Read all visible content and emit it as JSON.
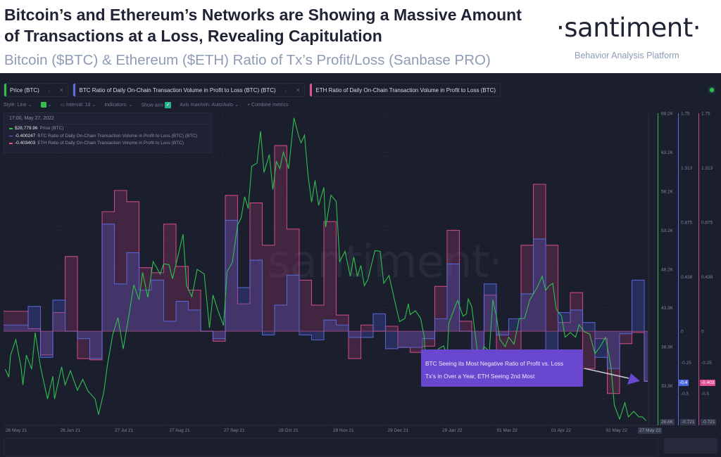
{
  "header": {
    "title": "Bitcoin’s and Ethereum’s Networks are Showing a Massive Amount of Transactions at a Loss, Revealing Capitulation",
    "subtitle": "Bitcoin ($BTC) & Ethereum ($ETH) Ratio of Tx’s Profit/Loss (Sanbase PRO)",
    "logo": "·santiment·",
    "logo_tagline": "Behavior Analysis Platform"
  },
  "tabs": [
    {
      "label": "Price (BTC)",
      "color": "#2fbf4f"
    },
    {
      "label": "BTC Ratio of Daily On-Chain Transaction Volume in Profit to Loss (BTC) (BTC)",
      "color": "#5b6ee1"
    },
    {
      "label": "ETH Ratio of Daily On-Chain Transaction Volume in Profit to Loss (BTC)",
      "color": "#e0508f"
    }
  ],
  "toolbar": {
    "style": "Style: Line",
    "interval": "Interval: 1d",
    "indicators": "Indicators:",
    "show_axis": "Show axis",
    "axis_maxmin": "Axis max/min: Auto/Auto",
    "combine": "+ Combine metrics"
  },
  "legend": {
    "time": "17:00, May 27, 2022",
    "rows": [
      {
        "value": "$28,779.96",
        "label": "Price (BTC)",
        "color": "#2fbf4f"
      },
      {
        "value": "-0.400247",
        "label": "BTC Ratio of Daily On-Chain Transaction Volume in Profit to Loss (BTC) (BTC)",
        "color": "#5b6ee1"
      },
      {
        "value": "-0.403403",
        "label": "ETH Ratio of Daily On-Chain Transaction Volume in Profit to Loss (BTC)",
        "color": "#e0508f"
      }
    ]
  },
  "annotation": {
    "line1": "BTC Seeing its Most Negative Ratio of Profit vs. Loss",
    "line2": "Tx’s in Over a Year, ETH Seeing 2nd Most"
  },
  "watermark": "·santiment·",
  "badges": {
    "btc_current": "-0.4",
    "eth_current": "-0.403",
    "price_min": "28.8K",
    "btc_min": "-0.721",
    "eth_min": "-0.721",
    "date_current": "27 May 22"
  },
  "chart_data": {
    "type": "line",
    "title": "Bitcoin ($BTC) & Ethereum ($ETH) Ratio of Tx’s Profit/Loss",
    "x_start": "2021-05-26",
    "x_days": 366,
    "x_tick_labels": [
      "26 May 21",
      "26 Jun 21",
      "27 Jul 21",
      "27 Aug 21",
      "27 Sep 21",
      "28 Oct 21",
      "28 Nov 21",
      "29 Dec 21",
      "29 Jan 22",
      "01 Mar 22",
      "01 Apr 22",
      "02 May 22"
    ],
    "x_tick_days": [
      0,
      31,
      62,
      93,
      124,
      155,
      186,
      217,
      248,
      279,
      310,
      341
    ],
    "price_axis": {
      "ylim": [
        28.3,
        68.2
      ],
      "ticks": [
        "68.2K",
        "63.2K",
        "58.2K",
        "53.2K",
        "48.2K",
        "43.3K",
        "38.3K",
        "33.3K"
      ],
      "tick_values": [
        68.2,
        63.2,
        58.2,
        53.2,
        48.2,
        43.3,
        38.3,
        33.3
      ]
    },
    "ratio_axis": {
      "ylim": [
        -0.75,
        1.75
      ],
      "ticks": [
        "1.75",
        "1.313",
        "0.875",
        "0.438",
        "0",
        "-0.25",
        "-0.5"
      ],
      "tick_values": [
        1.75,
        1.313,
        0.875,
        0.438,
        0,
        -0.25,
        -0.5
      ]
    },
    "series": [
      {
        "name": "Price (BTC)",
        "unit": "K USD",
        "color": "#2fbf4f",
        "points": [
          [
            1,
            35.4
          ],
          [
            3,
            34.4
          ],
          [
            4,
            37.2
          ],
          [
            7,
            39.2
          ],
          [
            10,
            35.6
          ],
          [
            11,
            33.4
          ],
          [
            13,
            37.2
          ],
          [
            16,
            35.4
          ],
          [
            18,
            40.1
          ],
          [
            21,
            35.7
          ],
          [
            25,
            31.6
          ],
          [
            28,
            34.5
          ],
          [
            29,
            31.6
          ],
          [
            33,
            35.7
          ],
          [
            35,
            33.4
          ],
          [
            38,
            35.2
          ],
          [
            42,
            32.7
          ],
          [
            45,
            34.1
          ],
          [
            48,
            32.6
          ],
          [
            52,
            31.6
          ],
          [
            54,
            29.6
          ],
          [
            57,
            32.5
          ],
          [
            59,
            35.9
          ],
          [
            62,
            39.8
          ],
          [
            65,
            42.0
          ],
          [
            68,
            38.0
          ],
          [
            71,
            42.0
          ],
          [
            74,
            46.2
          ],
          [
            77,
            44.3
          ],
          [
            79,
            47.8
          ],
          [
            82,
            44.6
          ],
          [
            85,
            49.2
          ],
          [
            89,
            47.6
          ],
          [
            91,
            48.9
          ],
          [
            94,
            48.8
          ],
          [
            96,
            47.0
          ],
          [
            99,
            49.8
          ],
          [
            102,
            52.7
          ],
          [
            104,
            46.1
          ],
          [
            107,
            44.7
          ],
          [
            110,
            48.2
          ],
          [
            114,
            47.6
          ],
          [
            117,
            40.7
          ],
          [
            119,
            44.9
          ],
          [
            122,
            42.8
          ],
          [
            125,
            41.0
          ],
          [
            127,
            47.9
          ],
          [
            130,
            49.1
          ],
          [
            133,
            53.9
          ],
          [
            135,
            54.8
          ],
          [
            137,
            57.5
          ],
          [
            139,
            56.0
          ],
          [
            141,
            61.4
          ],
          [
            144,
            61.8
          ],
          [
            146,
            65.9
          ],
          [
            148,
            60.6
          ],
          [
            151,
            62.9
          ],
          [
            153,
            58.4
          ],
          [
            155,
            62.0
          ],
          [
            157,
            61.1
          ],
          [
            159,
            63.2
          ],
          [
            162,
            61.1
          ],
          [
            165,
            67.6
          ],
          [
            168,
            65.0
          ],
          [
            169,
            64.4
          ],
          [
            171,
            65.4
          ],
          [
            173,
            60.2
          ],
          [
            175,
            56.8
          ],
          [
            177,
            59.6
          ],
          [
            179,
            56.4
          ],
          [
            182,
            58.7
          ],
          [
            183,
            53.6
          ],
          [
            186,
            57.7
          ],
          [
            189,
            56.9
          ],
          [
            191,
            49.2
          ],
          [
            194,
            50.5
          ],
          [
            197,
            47.3
          ],
          [
            199,
            49.8
          ],
          [
            201,
            47.3
          ],
          [
            203,
            48.7
          ],
          [
            205,
            46.1
          ],
          [
            207,
            46.9
          ],
          [
            211,
            50.6
          ],
          [
            214,
            50.5
          ],
          [
            216,
            46.4
          ],
          [
            219,
            47.4
          ],
          [
            223,
            43.4
          ],
          [
            225,
            41.5
          ],
          [
            228,
            41.9
          ],
          [
            230,
            43.8
          ],
          [
            231,
            42.4
          ],
          [
            234,
            42.9
          ],
          [
            237,
            41.9
          ],
          [
            239,
            39.5
          ],
          [
            240,
            35.3
          ],
          [
            243,
            36.8
          ],
          [
            247,
            38.0
          ],
          [
            250,
            38.4
          ],
          [
            252,
            37.1
          ],
          [
            253,
            41.3
          ],
          [
            257,
            43.7
          ],
          [
            258,
            44.2
          ],
          [
            261,
            42.2
          ],
          [
            263,
            42.5
          ],
          [
            264,
            44.4
          ],
          [
            266,
            43.4
          ],
          [
            269,
            38.0
          ],
          [
            271,
            36.8
          ],
          [
            273,
            38.3
          ],
          [
            276,
            37.7
          ],
          [
            278,
            44.3
          ],
          [
            280,
            42.2
          ],
          [
            282,
            39.2
          ],
          [
            285,
            38.3
          ],
          [
            287,
            39.5
          ],
          [
            290,
            38.6
          ],
          [
            293,
            41.9
          ],
          [
            296,
            41.9
          ],
          [
            299,
            44.3
          ],
          [
            303,
            45.8
          ],
          [
            306,
            47.3
          ],
          [
            308,
            45.5
          ],
          [
            310,
            46.1
          ],
          [
            312,
            46.4
          ],
          [
            314,
            43.1
          ],
          [
            317,
            42.2
          ],
          [
            319,
            39.5
          ],
          [
            322,
            40.1
          ],
          [
            325,
            39.5
          ],
          [
            327,
            41.1
          ],
          [
            330,
            40.2
          ],
          [
            333,
            39.9
          ],
          [
            336,
            37.4
          ],
          [
            339,
            38.3
          ],
          [
            342,
            39.5
          ],
          [
            345,
            35.9
          ],
          [
            347,
            30.8
          ],
          [
            350,
            29.0
          ],
          [
            353,
            31.1
          ],
          [
            355,
            29.3
          ],
          [
            358,
            30.0
          ],
          [
            361,
            29.3
          ],
          [
            363,
            29.3
          ],
          [
            365,
            28.8
          ]
        ]
      },
      {
        "name": "BTC Ratio of Daily On-Chain Transaction Volume in Profit to Loss (BTC) (BTC)",
        "color": "#5b6ee1",
        "step_days": 7,
        "values": [
          0.05,
          0.05,
          0.2,
          -0.21,
          0.25,
          0.0,
          -0.06,
          -0.22,
          0.86,
          0.38,
          0.63,
          0.33,
          0.41,
          0.08,
          0.24,
          0.17,
          0,
          -0.06,
          0.89,
          0.35,
          0.57,
          -0.03,
          0.21,
          0.45,
          -0.03,
          -0.07,
          0.09,
          0.05,
          -0.05,
          -0.05,
          0.14,
          -0.14,
          -0.13,
          -0.13,
          -0.06,
          0.1,
          0.54,
          0,
          -0.31,
          0.38,
          -0.03,
          0.1,
          0.3,
          0.74,
          -0.19,
          0.15,
          0.17,
          0.07,
          -0.21,
          -0.3,
          -0.02,
          0.41,
          -0.4
        ]
      },
      {
        "name": "ETH Ratio of Daily On-Chain Transaction Volume in Profit to Loss (BTC)",
        "color": "#e0508f",
        "step_days": 7,
        "values": [
          0.16,
          0.16,
          0.02,
          -0.19,
          0.15,
          0.6,
          -0.22,
          -0.23,
          0.96,
          1.13,
          1.04,
          0.51,
          0.47,
          0.86,
          0.52,
          0.33,
          0,
          -0.08,
          1.09,
          0.22,
          1.03,
          0.69,
          1.49,
          0.82,
          0.41,
          0.21,
          0.88,
          0.13,
          -0.22,
          0.05,
          0.0,
          0.04,
          -0.13,
          -0.17,
          -0.12,
          0.36,
          0.81,
          0.08,
          -0.3,
          0.29,
          -0.17,
          -0.18,
          0.69,
          1.18,
          0.69,
          0.07,
          0.31,
          -0.3,
          -0.06,
          -0.5,
          -0.1,
          -0.01,
          -0.403
        ]
      }
    ]
  }
}
